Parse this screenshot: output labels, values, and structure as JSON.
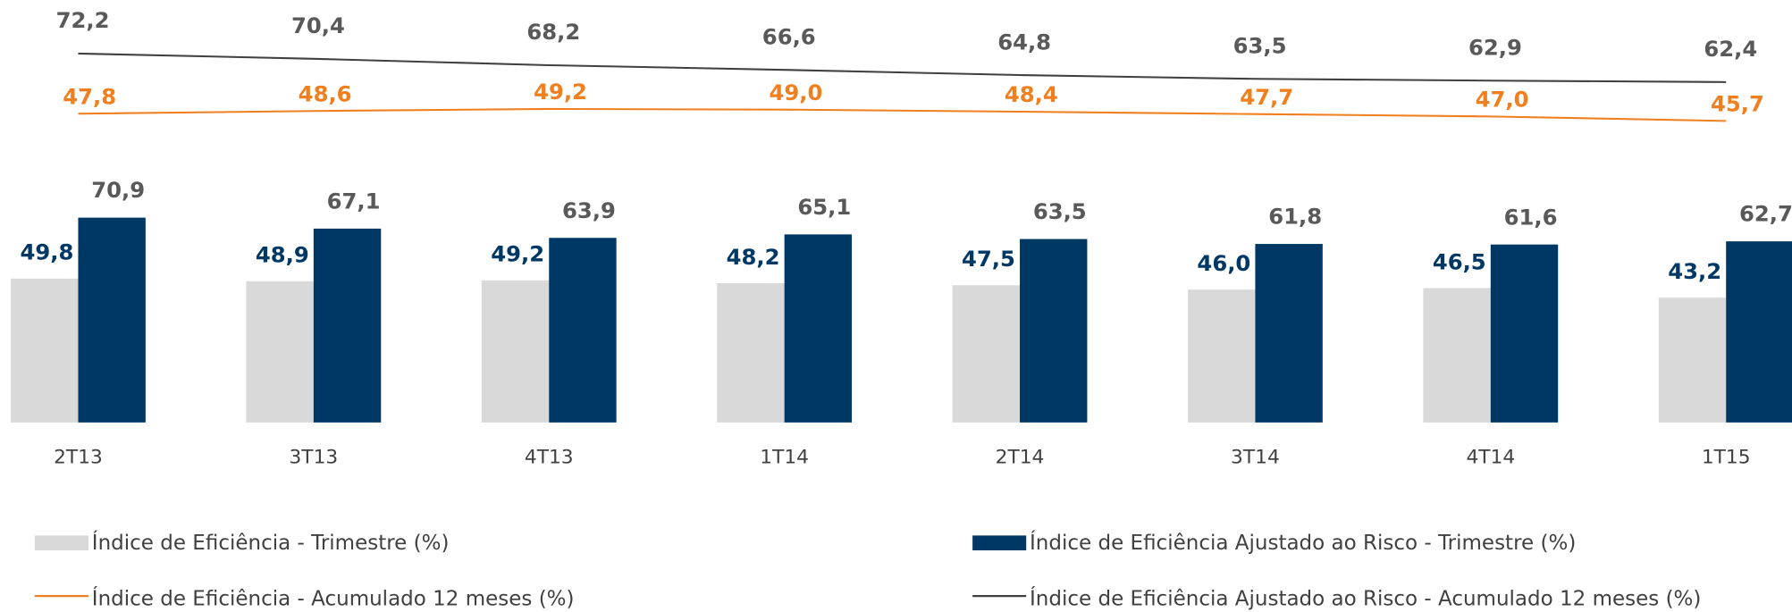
{
  "chart_data": {
    "type": "bar",
    "categories": [
      "2T13",
      "3T13",
      "4T13",
      "1T14",
      "2T14",
      "3T14",
      "4T14",
      "1T15"
    ],
    "series": [
      {
        "name": "Índice de Eficiência - Trimestre (%)",
        "type": "bar",
        "color": "#d9d9d9",
        "label_color": "#003865",
        "values": [
          49.8,
          48.9,
          49.2,
          48.2,
          47.5,
          46.0,
          46.5,
          43.2
        ],
        "value_labels": [
          "49,8",
          "48,9",
          "49,2",
          "48,2",
          "47,5",
          "46,0",
          "46,5",
          "43,2"
        ]
      },
      {
        "name": "Índice de Eficiência Ajustado ao Risco - Trimestre (%)",
        "type": "bar",
        "color": "#003865",
        "label_color": "#595959",
        "values": [
          70.9,
          67.1,
          63.9,
          65.1,
          63.5,
          61.8,
          61.6,
          62.7
        ],
        "value_labels": [
          "70,9",
          "67,1",
          "63,9",
          "65,1",
          "63,5",
          "61,8",
          "61,6",
          "62,7"
        ]
      },
      {
        "name": "Índice de Eficiência - Acumulado 12 meses (%)",
        "type": "line",
        "color": "#f07f1f",
        "label_color": "#f07f1f",
        "values": [
          47.8,
          48.6,
          49.2,
          49.0,
          48.4,
          47.7,
          47.0,
          45.7
        ],
        "value_labels": [
          "47,8",
          "48,6",
          "49,2",
          "49,0",
          "48,4",
          "47,7",
          "47,0",
          "45,7"
        ]
      },
      {
        "name": "Índice de Eficiência Ajustado ao Risco - Acumulado 12 meses (%)",
        "type": "line",
        "color": "#404040",
        "label_color": "#595959",
        "values": [
          72.2,
          70.4,
          68.2,
          66.6,
          64.8,
          63.5,
          62.9,
          62.4
        ],
        "value_labels": [
          "72,2",
          "70,4",
          "68,2",
          "66,6",
          "64,8",
          "63,5",
          "62,9",
          "62,4"
        ]
      }
    ]
  }
}
